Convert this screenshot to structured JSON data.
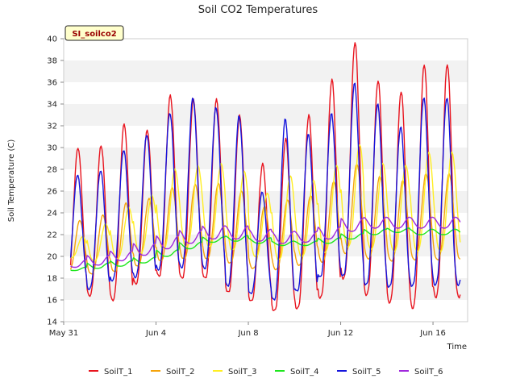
{
  "chart_data": {
    "type": "line",
    "title": "Soil CO2 Temperatures",
    "xlabel": "Time",
    "ylabel": "Soil Temperature (C)",
    "site_label": "SI_soilco2",
    "xlim": [
      0,
      17.5
    ],
    "ylim": [
      14,
      40
    ],
    "y_ticks": [
      14,
      16,
      18,
      20,
      22,
      24,
      26,
      28,
      30,
      32,
      34,
      36,
      38,
      40
    ],
    "x_ticks": [
      {
        "day": 0,
        "label": "May 31"
      },
      {
        "day": 4,
        "label": "Jun 4"
      },
      {
        "day": 8,
        "label": "Jun 8"
      },
      {
        "day": 12,
        "label": "Jun 12"
      },
      {
        "day": 16,
        "label": "Jun 16"
      }
    ],
    "grid": "horizontal alternating bands",
    "legend_position": "bottom",
    "series": [
      {
        "name": "SoilT_1",
        "color": "#e8141e",
        "daily_max": [
          30.0,
          30.2,
          32.2,
          31.6,
          34.8,
          34.4,
          34.4,
          32.9,
          28.5,
          30.8,
          33.0,
          36.3,
          39.7,
          36.2,
          35.2,
          37.7,
          37.7
        ],
        "daily_min": [
          17.0,
          16.4,
          16.0,
          17.5,
          18.2,
          18.0,
          18.0,
          16.7,
          15.9,
          15.0,
          15.2,
          16.2,
          18.0,
          16.5,
          15.8,
          15.3,
          16.3
        ]
      },
      {
        "name": "SoilT_2",
        "color": "#f5a30a",
        "daily_max": [
          23.3,
          23.8,
          24.9,
          25.3,
          26.3,
          26.6,
          26.7,
          26.0,
          24.6,
          25.2,
          25.6,
          26.9,
          28.5,
          27.4,
          27.0,
          27.6,
          27.6
        ],
        "daily_min": [
          18.6,
          18.4,
          18.6,
          19.1,
          19.6,
          19.8,
          19.8,
          19.4,
          18.9,
          18.8,
          19.2,
          19.5,
          20.3,
          19.8,
          19.6,
          19.7,
          19.7
        ]
      },
      {
        "name": "SoilT_3",
        "color": "#ffee24",
        "daily_max": [
          21.8,
          23.0,
          24.5,
          25.6,
          28.0,
          28.3,
          28.5,
          27.8,
          25.8,
          27.4,
          27.0,
          28.4,
          30.3,
          28.6,
          28.4,
          29.6,
          29.6
        ],
        "daily_min": [
          19.9,
          19.6,
          19.8,
          20.3,
          20.7,
          20.9,
          20.9,
          20.6,
          20.0,
          19.7,
          20.0,
          20.4,
          20.9,
          20.7,
          20.5,
          20.5,
          20.5
        ]
      },
      {
        "name": "SoilT_4",
        "color": "#1ee61e",
        "daily_max": [
          19.0,
          19.4,
          19.6,
          19.9,
          20.6,
          21.3,
          21.8,
          21.9,
          21.7,
          21.4,
          21.4,
          21.7,
          22.1,
          22.5,
          22.6,
          22.5,
          22.5
        ],
        "daily_min": [
          18.7,
          18.9,
          19.1,
          19.4,
          20.0,
          20.7,
          21.3,
          21.4,
          21.2,
          21.0,
          21.0,
          21.2,
          21.6,
          22.0,
          22.2,
          22.0,
          22.0
        ]
      },
      {
        "name": "SoilT_5",
        "color": "#1414dc",
        "daily_max": [
          27.5,
          27.9,
          29.8,
          31.2,
          33.2,
          34.6,
          33.7,
          32.9,
          25.9,
          32.6,
          31.2,
          33.1,
          35.9,
          34.0,
          31.9,
          34.6,
          34.6
        ],
        "daily_min": [
          17.6,
          17.0,
          17.8,
          18.1,
          18.8,
          19.0,
          18.9,
          17.3,
          16.6,
          16.0,
          16.8,
          18.1,
          18.2,
          17.4,
          17.2,
          17.3,
          17.4
        ]
      },
      {
        "name": "SoilT_6",
        "color": "#a028dc",
        "daily_max": [
          19.7,
          20.1,
          20.5,
          21.2,
          21.9,
          22.4,
          22.8,
          22.8,
          22.5,
          22.3,
          22.3,
          22.7,
          23.5,
          23.6,
          23.6,
          23.6,
          23.6
        ],
        "daily_min": [
          19.0,
          19.2,
          19.6,
          20.1,
          20.7,
          21.2,
          21.6,
          21.6,
          21.4,
          21.2,
          21.3,
          21.6,
          22.3,
          22.6,
          22.6,
          22.6,
          22.6
        ]
      }
    ]
  }
}
